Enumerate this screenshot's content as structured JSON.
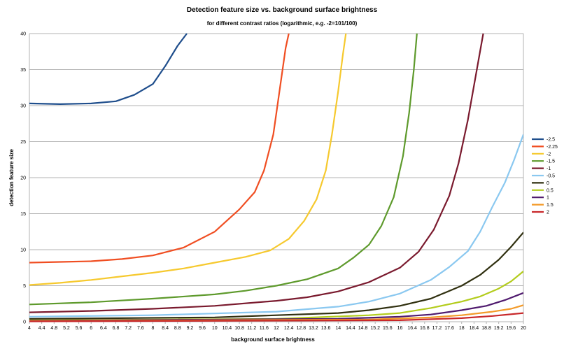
{
  "chart_data": {
    "type": "line",
    "title": "Detection feature size vs. background surface brightness",
    "subtitle": "for different contrast ratios (logarithmic, e.g. -2=101/100)",
    "xlabel": "background surface brightness",
    "ylabel": "detection feature size",
    "ylim": [
      0,
      40
    ],
    "yticks": [
      0,
      5,
      10,
      15,
      20,
      25,
      30,
      35,
      40
    ],
    "xlim": [
      4,
      20
    ],
    "xticks": [
      "4",
      "4.4",
      "4.8",
      "5.2",
      "5.6",
      "6",
      "6.4",
      "6.8",
      "7.2",
      "7.6",
      "8",
      "8.4",
      "8.8",
      "9.2",
      "9.6",
      "10",
      "10.4",
      "10.8",
      "11.2",
      "11.6",
      "12",
      "12.4",
      "12.8",
      "13.2",
      "13.6",
      "14",
      "14.4",
      "14.8",
      "15.2",
      "15.6",
      "16",
      "16.4",
      "16.8",
      "17.2",
      "17.6",
      "18",
      "18.4",
      "18.8",
      "19.2",
      "19.6",
      "20"
    ],
    "grid": "horizontal",
    "legend_position": "right",
    "series": [
      {
        "name": "-2.5",
        "color": "#1f4e8c",
        "points": [
          [
            4,
            30.3
          ],
          [
            5,
            30.2
          ],
          [
            6,
            30.3
          ],
          [
            6.8,
            30.6
          ],
          [
            7.4,
            31.5
          ],
          [
            8,
            33.0
          ],
          [
            8.4,
            35.5
          ],
          [
            8.8,
            38.3
          ],
          [
            9.1,
            40
          ]
        ]
      },
      {
        "name": "-2.25",
        "color": "#f04e22",
        "points": [
          [
            4,
            8.2
          ],
          [
            5,
            8.3
          ],
          [
            6,
            8.4
          ],
          [
            7,
            8.7
          ],
          [
            8,
            9.2
          ],
          [
            9,
            10.3
          ],
          [
            10,
            12.5
          ],
          [
            10.8,
            15.6
          ],
          [
            11.3,
            18.0
          ],
          [
            11.6,
            21
          ],
          [
            11.9,
            26
          ],
          [
            12.1,
            32
          ],
          [
            12.3,
            38
          ],
          [
            12.4,
            40
          ]
        ]
      },
      {
        "name": "-2",
        "color": "#f6c92e",
        "points": [
          [
            4,
            5.1
          ],
          [
            5,
            5.4
          ],
          [
            6,
            5.8
          ],
          [
            7,
            6.3
          ],
          [
            8,
            6.8
          ],
          [
            9,
            7.4
          ],
          [
            10,
            8.2
          ],
          [
            11,
            9.0
          ],
          [
            11.8,
            9.9
          ],
          [
            12.4,
            11.5
          ],
          [
            12.9,
            14
          ],
          [
            13.3,
            17
          ],
          [
            13.6,
            21
          ],
          [
            13.8,
            26
          ],
          [
            14,
            32
          ],
          [
            14.15,
            37
          ],
          [
            14.25,
            40
          ]
        ]
      },
      {
        "name": "-1.5",
        "color": "#5e9a2c",
        "points": [
          [
            4,
            2.4
          ],
          [
            6,
            2.7
          ],
          [
            8,
            3.2
          ],
          [
            10,
            3.8
          ],
          [
            11,
            4.3
          ],
          [
            12,
            5.0
          ],
          [
            13,
            5.9
          ],
          [
            14,
            7.4
          ],
          [
            14.5,
            8.9
          ],
          [
            15,
            10.7
          ],
          [
            15.4,
            13.3
          ],
          [
            15.8,
            17.3
          ],
          [
            16.1,
            23
          ],
          [
            16.3,
            29
          ],
          [
            16.45,
            35
          ],
          [
            16.55,
            40
          ]
        ]
      },
      {
        "name": "-1",
        "color": "#7a1a2e",
        "points": [
          [
            4,
            1.3
          ],
          [
            6,
            1.5
          ],
          [
            8,
            1.8
          ],
          [
            10,
            2.2
          ],
          [
            12,
            2.9
          ],
          [
            13,
            3.4
          ],
          [
            14,
            4.2
          ],
          [
            15,
            5.5
          ],
          [
            16,
            7.5
          ],
          [
            16.6,
            9.7
          ],
          [
            17.1,
            12.8
          ],
          [
            17.6,
            17.5
          ],
          [
            17.9,
            22
          ],
          [
            18.2,
            28
          ],
          [
            18.45,
            34
          ],
          [
            18.7,
            40
          ]
        ]
      },
      {
        "name": "-0.5",
        "color": "#8ac8f0",
        "points": [
          [
            4,
            0.7
          ],
          [
            8,
            0.9
          ],
          [
            12,
            1.4
          ],
          [
            14,
            2.1
          ],
          [
            15,
            2.8
          ],
          [
            16,
            3.9
          ],
          [
            17,
            5.8
          ],
          [
            17.6,
            7.6
          ],
          [
            18.2,
            9.8
          ],
          [
            18.6,
            12.5
          ],
          [
            19,
            16
          ],
          [
            19.4,
            19.3
          ],
          [
            19.7,
            22.5
          ],
          [
            20,
            26
          ]
        ]
      },
      {
        "name": "0",
        "color": "#303010",
        "points": [
          [
            4,
            0.4
          ],
          [
            10,
            0.6
          ],
          [
            14,
            1.2
          ],
          [
            15,
            1.6
          ],
          [
            16,
            2.2
          ],
          [
            17,
            3.2
          ],
          [
            18,
            5.0
          ],
          [
            18.6,
            6.5
          ],
          [
            19.2,
            8.6
          ],
          [
            19.6,
            10.4
          ],
          [
            20,
            12.4
          ]
        ]
      },
      {
        "name": "0.5",
        "color": "#b3cc1c",
        "points": [
          [
            4,
            0.2
          ],
          [
            12,
            0.4
          ],
          [
            15,
            0.9
          ],
          [
            16,
            1.2
          ],
          [
            17,
            1.9
          ],
          [
            18,
            2.8
          ],
          [
            18.6,
            3.5
          ],
          [
            19.2,
            4.6
          ],
          [
            19.6,
            5.6
          ],
          [
            20,
            7.0
          ]
        ]
      },
      {
        "name": "1",
        "color": "#4f1a6e",
        "points": [
          [
            4,
            0.15
          ],
          [
            14,
            0.4
          ],
          [
            16,
            0.7
          ],
          [
            17,
            1.0
          ],
          [
            18,
            1.6
          ],
          [
            18.8,
            2.2
          ],
          [
            19.4,
            3.0
          ],
          [
            20,
            4.0
          ]
        ]
      },
      {
        "name": "1.5",
        "color": "#f39a28",
        "points": [
          [
            4,
            0.1
          ],
          [
            15,
            0.3
          ],
          [
            17,
            0.6
          ],
          [
            18,
            0.9
          ],
          [
            19,
            1.4
          ],
          [
            19.6,
            1.8
          ],
          [
            20,
            2.3
          ]
        ]
      },
      {
        "name": "2",
        "color": "#c8282a",
        "points": [
          [
            4,
            0.05
          ],
          [
            16,
            0.2
          ],
          [
            18,
            0.5
          ],
          [
            19,
            0.8
          ],
          [
            20,
            1.2
          ]
        ]
      }
    ]
  }
}
